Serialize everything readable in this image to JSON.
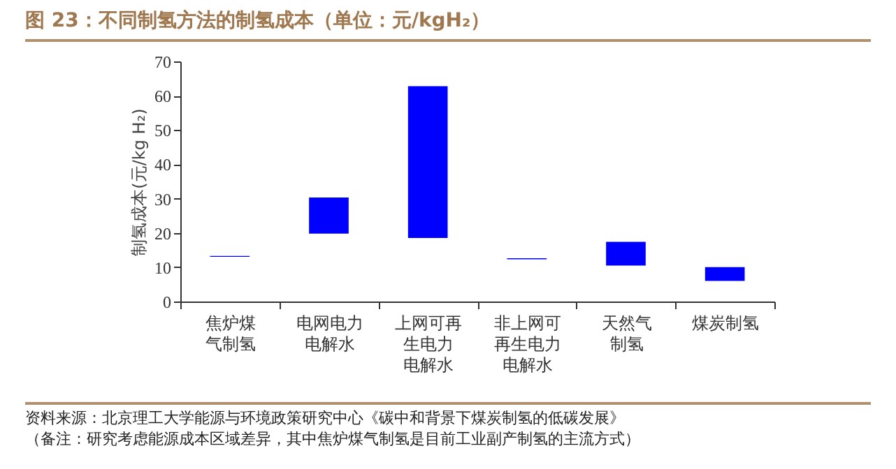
{
  "chart_data": {
    "type": "bar",
    "title": "图 23：不同制氢方法的制氢成本（单位：元/kgH₂）",
    "ylabel": "制氢成本(元/kg H₂)",
    "categories": [
      "焦炉煤气制氢",
      "电网电力电解水",
      "上网可再生电力电解水",
      "非上网可再生电力电解水",
      "天然气制氢",
      "煤炭制氢"
    ],
    "base": [
      13,
      19.8,
      18.5,
      12.3,
      10.5,
      6
    ],
    "values": [
      0.3,
      10.5,
      44.3,
      0.3,
      6.9,
      4
    ],
    "color": "#0000ff",
    "ylim": [
      0,
      70
    ],
    "yticks": [
      0,
      10,
      20,
      30,
      40,
      50,
      60,
      70
    ],
    "grid": false,
    "annotations": [
      "资料来源：北京理工大学能源与环境政策研究中心《碳中和背景下煤炭制氢的低碳发展》",
      "（备注：研究考虑能源成本区域差异，其中焦炉煤气制氢是目前工业副产制氢的主流方式）"
    ]
  }
}
